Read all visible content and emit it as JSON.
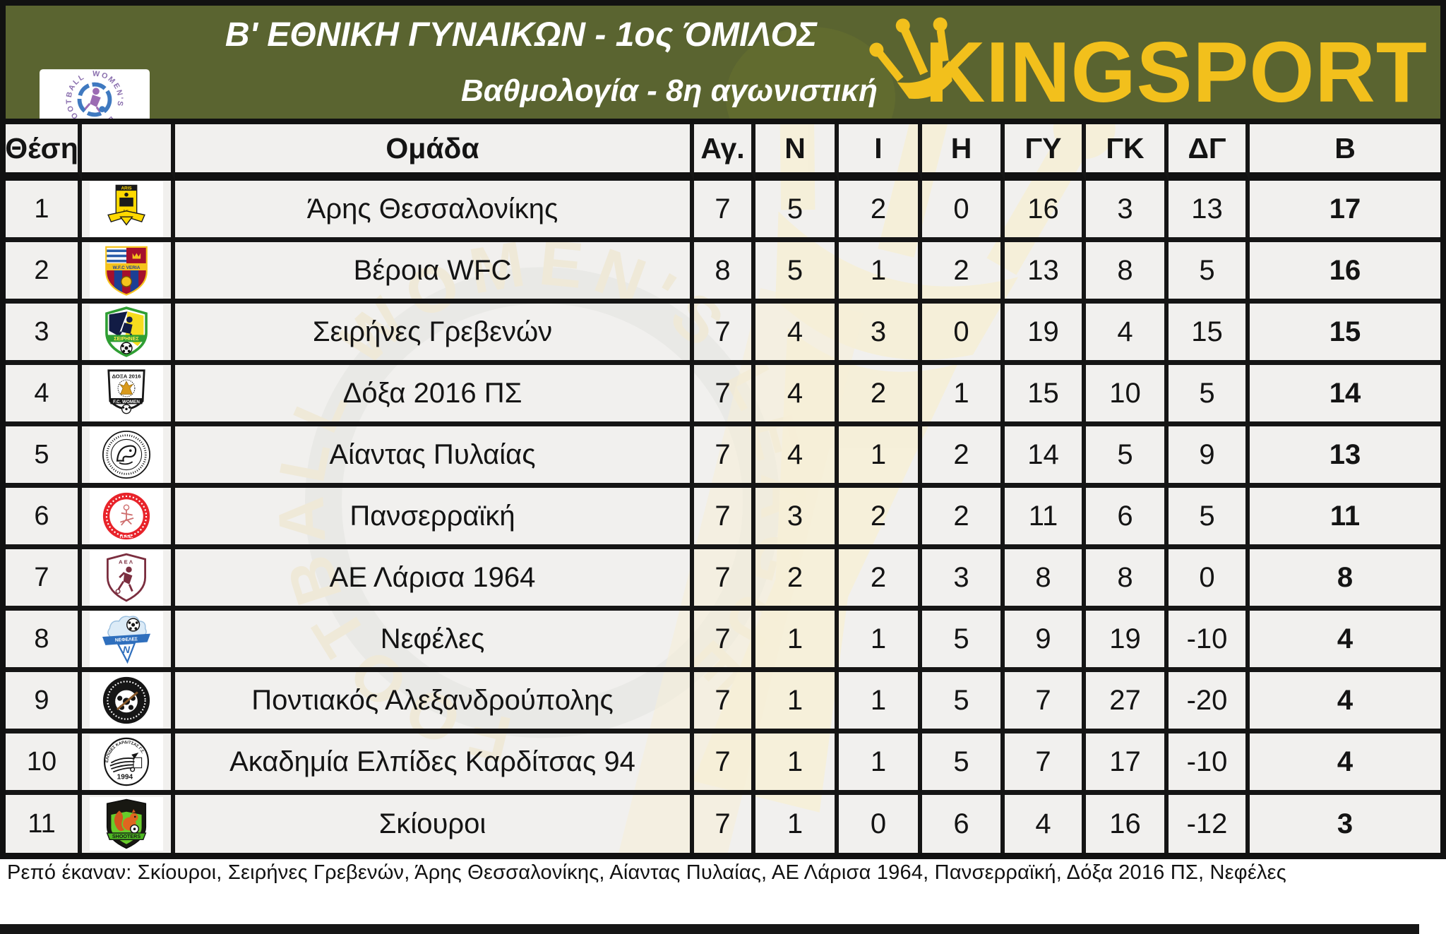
{
  "header": {
    "title": "Β' ΕΘΝΙΚΗ ΓΥΝΑΙΚΩΝ - 1ος ΌΜΙΛΟΣ",
    "subtitle": "Βαθμολογία - 8η αγωνιστική",
    "brand": "KINGSPORT",
    "league_logo_text": "WOMEN'S FOOTBALL LEAGUE"
  },
  "table": {
    "columns": [
      {
        "key": "pos",
        "label": "Θέση"
      },
      {
        "key": "crest",
        "label": ""
      },
      {
        "key": "team",
        "label": "Ομάδα"
      },
      {
        "key": "ag",
        "label": "Αγ."
      },
      {
        "key": "n",
        "label": "Ν"
      },
      {
        "key": "i",
        "label": "Ι"
      },
      {
        "key": "h",
        "label": "Η"
      },
      {
        "key": "gy",
        "label": "ΓΥ"
      },
      {
        "key": "gk",
        "label": "ΓΚ"
      },
      {
        "key": "dg",
        "label": "ΔΓ"
      },
      {
        "key": "b",
        "label": "Β"
      }
    ],
    "rows": [
      {
        "pos": "1",
        "crest": "aris",
        "team": "Άρης Θεσσαλονίκης",
        "ag": "7",
        "n": "5",
        "i": "2",
        "h": "0",
        "gy": "16",
        "gk": "3",
        "dg": "13",
        "b": "17"
      },
      {
        "pos": "2",
        "crest": "veria",
        "team": "Βέροια WFC",
        "ag": "8",
        "n": "5",
        "i": "1",
        "h": "2",
        "gy": "13",
        "gk": "8",
        "dg": "5",
        "b": "16"
      },
      {
        "pos": "3",
        "crest": "seirines",
        "team": "Σειρήνες Γρεβενών",
        "ag": "7",
        "n": "4",
        "i": "3",
        "h": "0",
        "gy": "19",
        "gk": "4",
        "dg": "15",
        "b": "15"
      },
      {
        "pos": "4",
        "crest": "doxa",
        "team": "Δόξα 2016 ΠΣ",
        "ag": "7",
        "n": "4",
        "i": "2",
        "h": "1",
        "gy": "15",
        "gk": "10",
        "dg": "5",
        "b": "14"
      },
      {
        "pos": "5",
        "crest": "aiantas",
        "team": "Αίαντας Πυλαίας",
        "ag": "7",
        "n": "4",
        "i": "1",
        "h": "2",
        "gy": "14",
        "gk": "5",
        "dg": "9",
        "b": "13"
      },
      {
        "pos": "6",
        "crest": "panserraiki",
        "team": "Πανσερραϊκή",
        "ag": "7",
        "n": "3",
        "i": "2",
        "h": "2",
        "gy": "11",
        "gk": "6",
        "dg": "5",
        "b": "11"
      },
      {
        "pos": "7",
        "crest": "larisa",
        "team": "ΑΕ Λάρισα 1964",
        "ag": "7",
        "n": "2",
        "i": "2",
        "h": "3",
        "gy": "8",
        "gk": "8",
        "dg": "0",
        "b": "8"
      },
      {
        "pos": "8",
        "crest": "nefeles",
        "team": "Νεφέλες",
        "ag": "7",
        "n": "1",
        "i": "1",
        "h": "5",
        "gy": "9",
        "gk": "19",
        "dg": "-10",
        "b": "4"
      },
      {
        "pos": "9",
        "crest": "pontiakos",
        "team": "Ποντιακός Αλεξανδρούπολης",
        "ag": "7",
        "n": "1",
        "i": "1",
        "h": "5",
        "gy": "7",
        "gk": "27",
        "dg": "-20",
        "b": "4"
      },
      {
        "pos": "10",
        "crest": "elpides",
        "team": "Ακαδημία Ελπίδες Καρδίτσας 94",
        "ag": "7",
        "n": "1",
        "i": "1",
        "h": "5",
        "gy": "7",
        "gk": "17",
        "dg": "-10",
        "b": "4"
      },
      {
        "pos": "11",
        "crest": "skiouroi",
        "team": "Σκίουροι",
        "ag": "7",
        "n": "1",
        "i": "0",
        "h": "6",
        "gy": "4",
        "gk": "16",
        "dg": "-12",
        "b": "3"
      }
    ]
  },
  "footer": {
    "label": "Ρεπό έκαναν:",
    "teams": [
      "Σκίουροι",
      "Σειρήνες Γρεβενών",
      "Άρης Θεσσαλονίκης",
      "Αίαντας Πυλαίας",
      "ΑΕ Λάρισα 1964",
      "Πανσερραϊκή",
      "Δόξα 2016 ΠΣ",
      "Νεφέλες"
    ]
  },
  "colors": {
    "banner_green": "#5a6430",
    "brand_gold": "#f2c01c",
    "cell_bg": "#f1f0ee",
    "watermark_cream": "#f6efd7",
    "grid_black": "#151515"
  },
  "chart_data": {
    "type": "table",
    "title": "Β' ΕΘΝΙΚΗ ΓΥΝΑΙΚΩΝ - 1ος ΌΜΙΛΟΣ",
    "subtitle": "Βαθμολογία - 8η αγωνιστική",
    "columns": [
      "Θέση",
      "Ομάδα",
      "Αγ.",
      "Ν",
      "Ι",
      "Η",
      "ΓΥ",
      "ΓΚ",
      "ΔΓ",
      "Β"
    ],
    "rows": [
      [
        1,
        "Άρης Θεσσαλονίκης",
        7,
        5,
        2,
        0,
        16,
        3,
        13,
        17
      ],
      [
        2,
        "Βέροια WFC",
        8,
        5,
        1,
        2,
        13,
        8,
        5,
        16
      ],
      [
        3,
        "Σειρήνες Γρεβενών",
        7,
        4,
        3,
        0,
        19,
        4,
        15,
        15
      ],
      [
        4,
        "Δόξα 2016 ΠΣ",
        7,
        4,
        2,
        1,
        15,
        10,
        5,
        14
      ],
      [
        5,
        "Αίαντας Πυλαίας",
        7,
        4,
        1,
        2,
        14,
        5,
        9,
        13
      ],
      [
        6,
        "Πανσερραϊκή",
        7,
        3,
        2,
        2,
        11,
        6,
        5,
        11
      ],
      [
        7,
        "ΑΕ Λάρισα 1964",
        7,
        2,
        2,
        3,
        8,
        8,
        0,
        8
      ],
      [
        8,
        "Νεφέλες",
        7,
        1,
        1,
        5,
        9,
        19,
        -10,
        4
      ],
      [
        9,
        "Ποντιακός Αλεξανδρούπολης",
        7,
        1,
        1,
        5,
        7,
        27,
        -20,
        4
      ],
      [
        10,
        "Ακαδημία Ελπίδες Καρδίτσας 94",
        7,
        1,
        1,
        5,
        7,
        17,
        -10,
        4
      ],
      [
        11,
        "Σκίουροι",
        7,
        1,
        0,
        6,
        4,
        16,
        -12,
        3
      ]
    ]
  }
}
